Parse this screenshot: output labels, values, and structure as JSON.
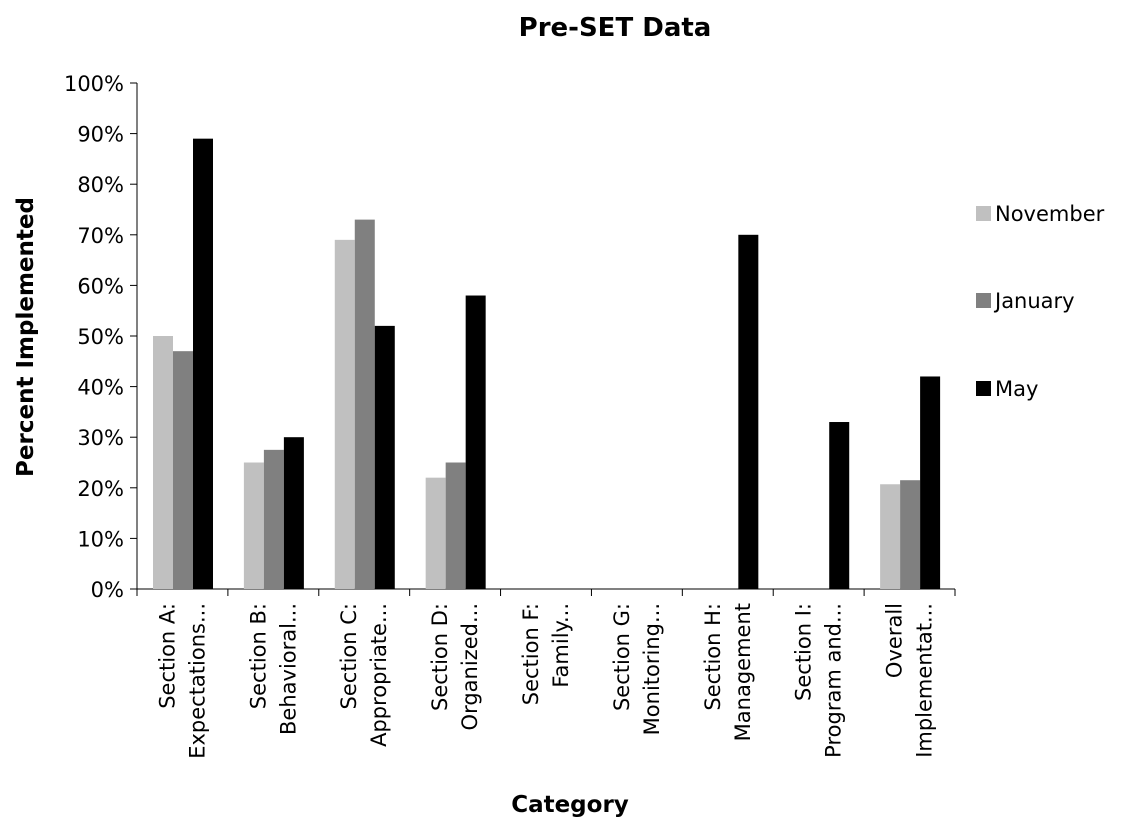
{
  "chart_data": {
    "type": "bar",
    "title": "Pre-SET Data",
    "xlabel": "Category",
    "ylabel": "Percent Implemented",
    "ylim": [
      0,
      100
    ],
    "yticks": [
      "0%",
      "10%",
      "20%",
      "30%",
      "40%",
      "50%",
      "60%",
      "70%",
      "80%",
      "90%",
      "100%"
    ],
    "grid": false,
    "legend_position": "right",
    "categories": [
      [
        "Section A:",
        "Expectations..."
      ],
      [
        "Section B:",
        "Behavioral..."
      ],
      [
        "Section C:",
        "Appropriate..."
      ],
      [
        "Section D:",
        "Organized..."
      ],
      [
        "Section F:",
        "Family..."
      ],
      [
        "Section G:",
        "Monitoring..."
      ],
      [
        "Section H:",
        "Management"
      ],
      [
        "Section I:",
        "Program and..."
      ],
      [
        "Overall",
        "Implementat..."
      ]
    ],
    "series": [
      {
        "name": "November",
        "color": "#c0c0c0",
        "values": [
          50,
          25,
          69,
          22,
          0,
          0,
          0,
          0,
          20.7
        ]
      },
      {
        "name": "January",
        "color": "#808080",
        "values": [
          47,
          27.5,
          73,
          25,
          0,
          0,
          0,
          0,
          21.5
        ]
      },
      {
        "name": "May",
        "color": "#000000",
        "values": [
          89,
          30,
          52,
          58,
          0,
          0,
          70,
          33,
          42
        ]
      }
    ]
  }
}
